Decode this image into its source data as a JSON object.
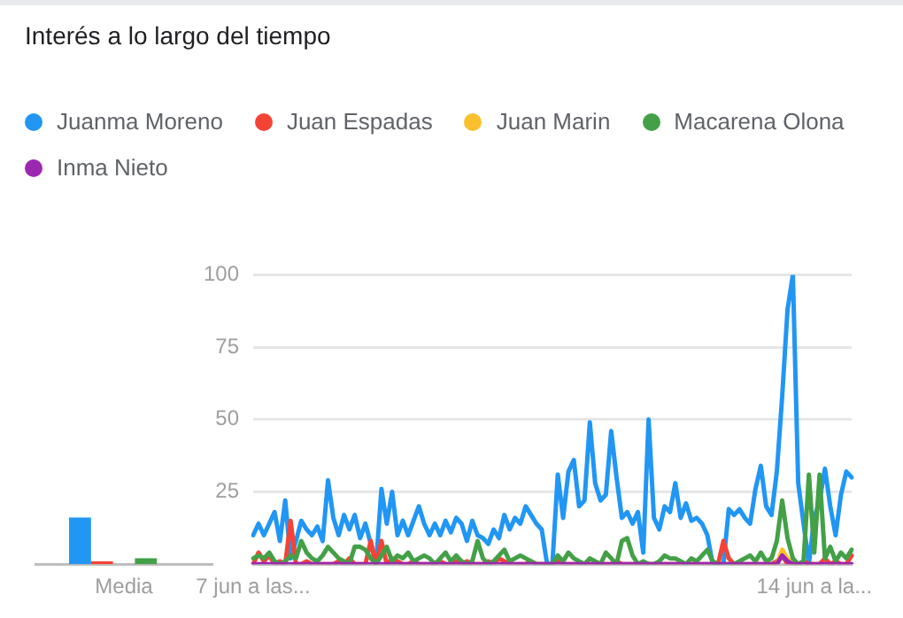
{
  "chart_data": [
    {
      "type": "bar",
      "categories": [
        "Media"
      ],
      "series": [
        {
          "color": "#2196f3",
          "values": [
            16
          ]
        },
        {
          "color": "#f44336",
          "values": [
            1
          ]
        },
        {
          "color": "#fbc02d",
          "values": [
            0
          ]
        },
        {
          "color": "#43a047",
          "values": [
            2
          ]
        },
        {
          "color": "#9c27b0",
          "values": [
            0
          ]
        }
      ],
      "ylim": [
        0,
        100
      ],
      "tick_labels": "x",
      "grid": false
    },
    {
      "type": "line",
      "title": "Interés a lo largo del tiempo",
      "legend": "top",
      "categories": [
        "7 jun a las...",
        null,
        null,
        null,
        null,
        null,
        null,
        null,
        null,
        null,
        null,
        null,
        null,
        null,
        null,
        null,
        null,
        null,
        null,
        null,
        null,
        null,
        null,
        null,
        null,
        null,
        null,
        null,
        null,
        null,
        null,
        null,
        null,
        null,
        null,
        null,
        null,
        null,
        null,
        null,
        null,
        null,
        null,
        null,
        null,
        null,
        null,
        null,
        null,
        null,
        null,
        null,
        null,
        null,
        null,
        null,
        null,
        null,
        null,
        null,
        null,
        null,
        null,
        null,
        null,
        null,
        null,
        null,
        null,
        null,
        null,
        null,
        null,
        null,
        null,
        null,
        null,
        null,
        null,
        null,
        null,
        null,
        null,
        null,
        null,
        null,
        null,
        null,
        null,
        null,
        null,
        null,
        null,
        null,
        null,
        null,
        null,
        null,
        null,
        null,
        null,
        null,
        null,
        null,
        null,
        "14 jun a la...",
        null,
        null,
        null,
        null,
        null,
        null,
        null
      ],
      "series": [
        {
          "name": "Juanma Moreno",
          "color": "#2196f3",
          "values": [
            10,
            14,
            10,
            14,
            18,
            8,
            22,
            2,
            8,
            15,
            12,
            10,
            13,
            8,
            29,
            16,
            10,
            17,
            12,
            17,
            9,
            14,
            7,
            0,
            26,
            14,
            25,
            10,
            15,
            10,
            15,
            20,
            14,
            10,
            14,
            10,
            15,
            11,
            16,
            14,
            8,
            15,
            10,
            9,
            7,
            12,
            9,
            17,
            12,
            16,
            14,
            20,
            17,
            14,
            12,
            0,
            0,
            31,
            16,
            32,
            36,
            20,
            22,
            49,
            28,
            22,
            24,
            46,
            30,
            16,
            18,
            14,
            18,
            4,
            50,
            16,
            12,
            20,
            18,
            28,
            16,
            21,
            15,
            16,
            14,
            10,
            0,
            0,
            0,
            19,
            17,
            19,
            16,
            14,
            26,
            34,
            20,
            17,
            32,
            58,
            88,
            100,
            28,
            14,
            0,
            16,
            22,
            33,
            20,
            10,
            24,
            32,
            30
          ]
        },
        {
          "name": "Juan Espadas",
          "color": "#f44336",
          "values": [
            0,
            4,
            1,
            3,
            0,
            1,
            0,
            15,
            0,
            0,
            1,
            0,
            0,
            0,
            0,
            0,
            1,
            0,
            2,
            0,
            0,
            0,
            8,
            0,
            8,
            0,
            2,
            1,
            0,
            0,
            1,
            0,
            0,
            0,
            0,
            1,
            0,
            0,
            1,
            0,
            1,
            0,
            0,
            0,
            1,
            0,
            2,
            1,
            0,
            0,
            0,
            0,
            1,
            0,
            0,
            0,
            0,
            1,
            0,
            0,
            0,
            0,
            0,
            0,
            0,
            0,
            0,
            0,
            1,
            0,
            0,
            0,
            0,
            0,
            0,
            0,
            0,
            0,
            0,
            0,
            0,
            0,
            0,
            0,
            0,
            0,
            0,
            0,
            8,
            2,
            0,
            0,
            0,
            0,
            0,
            0,
            0,
            0,
            1,
            3,
            0,
            0,
            0,
            1,
            0,
            0,
            0,
            2,
            0,
            1,
            0,
            0,
            3
          ]
        },
        {
          "name": "Juan Marin",
          "color": "#fbc02d",
          "values": [
            null,
            null,
            null,
            null,
            null,
            null,
            null,
            null,
            null,
            null,
            null,
            null,
            null,
            null,
            null,
            null,
            null,
            null,
            null,
            null,
            null,
            null,
            null,
            null,
            null,
            null,
            null,
            null,
            null,
            null,
            null,
            null,
            null,
            null,
            null,
            null,
            null,
            null,
            null,
            null,
            null,
            null,
            null,
            null,
            null,
            null,
            null,
            null,
            null,
            null,
            null,
            null,
            null,
            null,
            null,
            null,
            null,
            null,
            null,
            null,
            null,
            null,
            null,
            null,
            null,
            null,
            null,
            null,
            null,
            null,
            null,
            null,
            null,
            null,
            null,
            null,
            null,
            null,
            null,
            null,
            null,
            null,
            null,
            null,
            null,
            null,
            null,
            null,
            null,
            null,
            null,
            null,
            null,
            null,
            null,
            null,
            null,
            null,
            0,
            5,
            2,
            0,
            null,
            null,
            null,
            null,
            null,
            null,
            null,
            null,
            null,
            null,
            null
          ]
        },
        {
          "name": "Macarena Olona",
          "color": "#43a047",
          "values": [
            2,
            3,
            2,
            4,
            1,
            0,
            1,
            3,
            2,
            8,
            4,
            2,
            1,
            3,
            6,
            4,
            2,
            1,
            0,
            6,
            6,
            5,
            2,
            0,
            3,
            6,
            1,
            3,
            2,
            4,
            1,
            2,
            3,
            2,
            0,
            2,
            4,
            1,
            3,
            1,
            0,
            1,
            8,
            2,
            0,
            1,
            3,
            5,
            1,
            2,
            3,
            2,
            1,
            0,
            0,
            0,
            0,
            3,
            1,
            4,
            2,
            1,
            0,
            2,
            1,
            0,
            4,
            2,
            0,
            8,
            9,
            3,
            0,
            1,
            0,
            0,
            1,
            3,
            2,
            2,
            1,
            0,
            2,
            1,
            3,
            5,
            1,
            0,
            0,
            0,
            0,
            1,
            2,
            3,
            1,
            4,
            1,
            2,
            8,
            22,
            9,
            2,
            0,
            1,
            31,
            4,
            31,
            2,
            6,
            1,
            4,
            2,
            5
          ]
        },
        {
          "name": "Inma Nieto",
          "color": "#9c27b0",
          "values": [
            0,
            0,
            0,
            0,
            0,
            0,
            0,
            0,
            0,
            0,
            0,
            0,
            0,
            0,
            0,
            0,
            0,
            0,
            0,
            0,
            0,
            0,
            0,
            0,
            0,
            0,
            0,
            0,
            0,
            0,
            0,
            0,
            0,
            0,
            0,
            0,
            0,
            0,
            0,
            0,
            0,
            0,
            0,
            0,
            0,
            0,
            0,
            0,
            0,
            0,
            0,
            0,
            0,
            0,
            0,
            0,
            0,
            0,
            0,
            0,
            0,
            0,
            0,
            0,
            0,
            0,
            0,
            0,
            0,
            0,
            0,
            0,
            0,
            0,
            0,
            0,
            0,
            0,
            0,
            0,
            0,
            0,
            0,
            0,
            0,
            0,
            0,
            0,
            0,
            0,
            0,
            0,
            0,
            0,
            0,
            0,
            0,
            0,
            0,
            3,
            1,
            0,
            0,
            0,
            0,
            0,
            0,
            0,
            0,
            0,
            0,
            0,
            0
          ]
        }
      ],
      "ylim": [
        0,
        100
      ],
      "yticks": [
        25,
        50,
        75,
        100
      ],
      "grid": "y"
    }
  ]
}
